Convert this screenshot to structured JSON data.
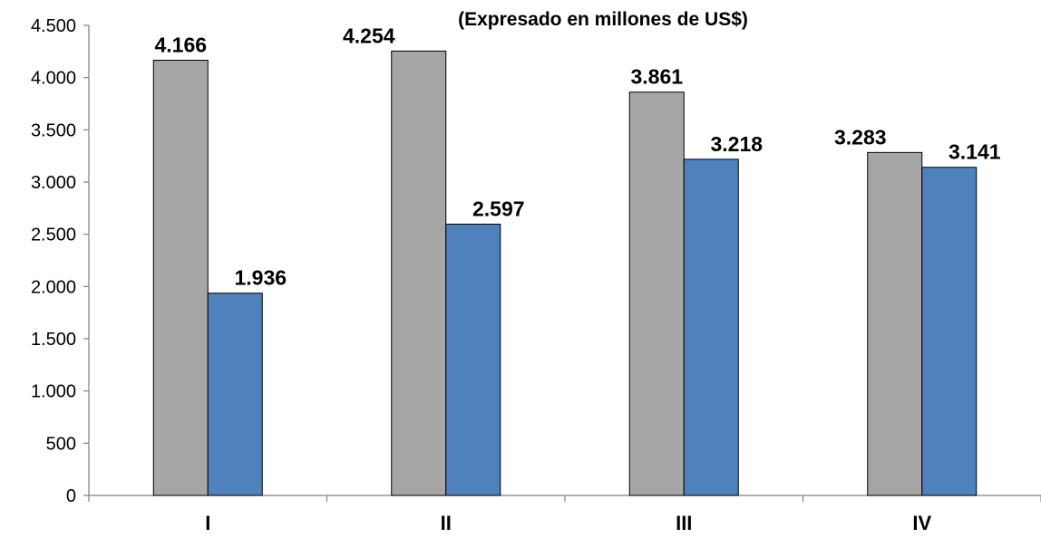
{
  "chart_data": {
    "type": "bar",
    "subtitle": "(Expresado en millones de US$)",
    "categories": [
      "I",
      "II",
      "III",
      "IV"
    ],
    "series": [
      {
        "values": [
          4166,
          4254,
          3861,
          3283
        ],
        "labels": [
          "4.166",
          "4.254",
          "3.861",
          "3.283"
        ],
        "color": "#a6a6a6"
      },
      {
        "values": [
          1936,
          2597,
          3218,
          3141
        ],
        "labels": [
          "1.936",
          "2.597",
          "3.218",
          "3.141"
        ],
        "color": "#4f81bd"
      }
    ],
    "yticks": [
      0,
      500,
      1000,
      1500,
      2000,
      2500,
      3000,
      3500,
      4000,
      4500
    ],
    "ytick_labels": [
      "0",
      "500",
      "1.000",
      "1.500",
      "2.000",
      "2.500",
      "3.000",
      "3.500",
      "4.000",
      "4.500"
    ],
    "ylim": [
      0,
      4500
    ],
    "grid": false,
    "legend": "none"
  }
}
